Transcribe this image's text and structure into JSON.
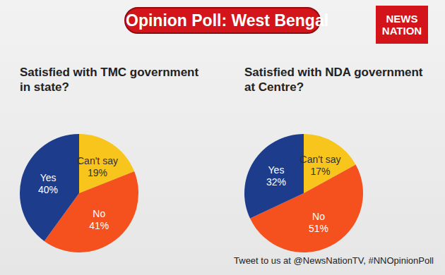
{
  "title": "Opinion Poll: West Bengal",
  "logo": "NEWS NATION",
  "footer": "Tweet to us at @NewsNationTV, #NNOpinionPoll",
  "chart_data": [
    {
      "type": "pie",
      "title": "Satisfied with TMC government in state?",
      "categories": [
        "Can't say",
        "No",
        "Yes"
      ],
      "values": [
        19,
        41,
        40
      ],
      "value_labels": [
        "19%",
        "41%",
        "40%"
      ],
      "colors": [
        "#f8c51c",
        "#f4511e",
        "#1d3c8c"
      ],
      "data_labels": true
    },
    {
      "type": "pie",
      "title": "Satisfied with NDA government at Centre?",
      "categories": [
        "Can't say",
        "No",
        "Yes"
      ],
      "values": [
        17,
        51,
        32
      ],
      "value_labels": [
        "17%",
        "51%",
        "32%"
      ],
      "colors": [
        "#f8c51c",
        "#f4511e",
        "#1d3c8c"
      ],
      "data_labels": true
    }
  ]
}
